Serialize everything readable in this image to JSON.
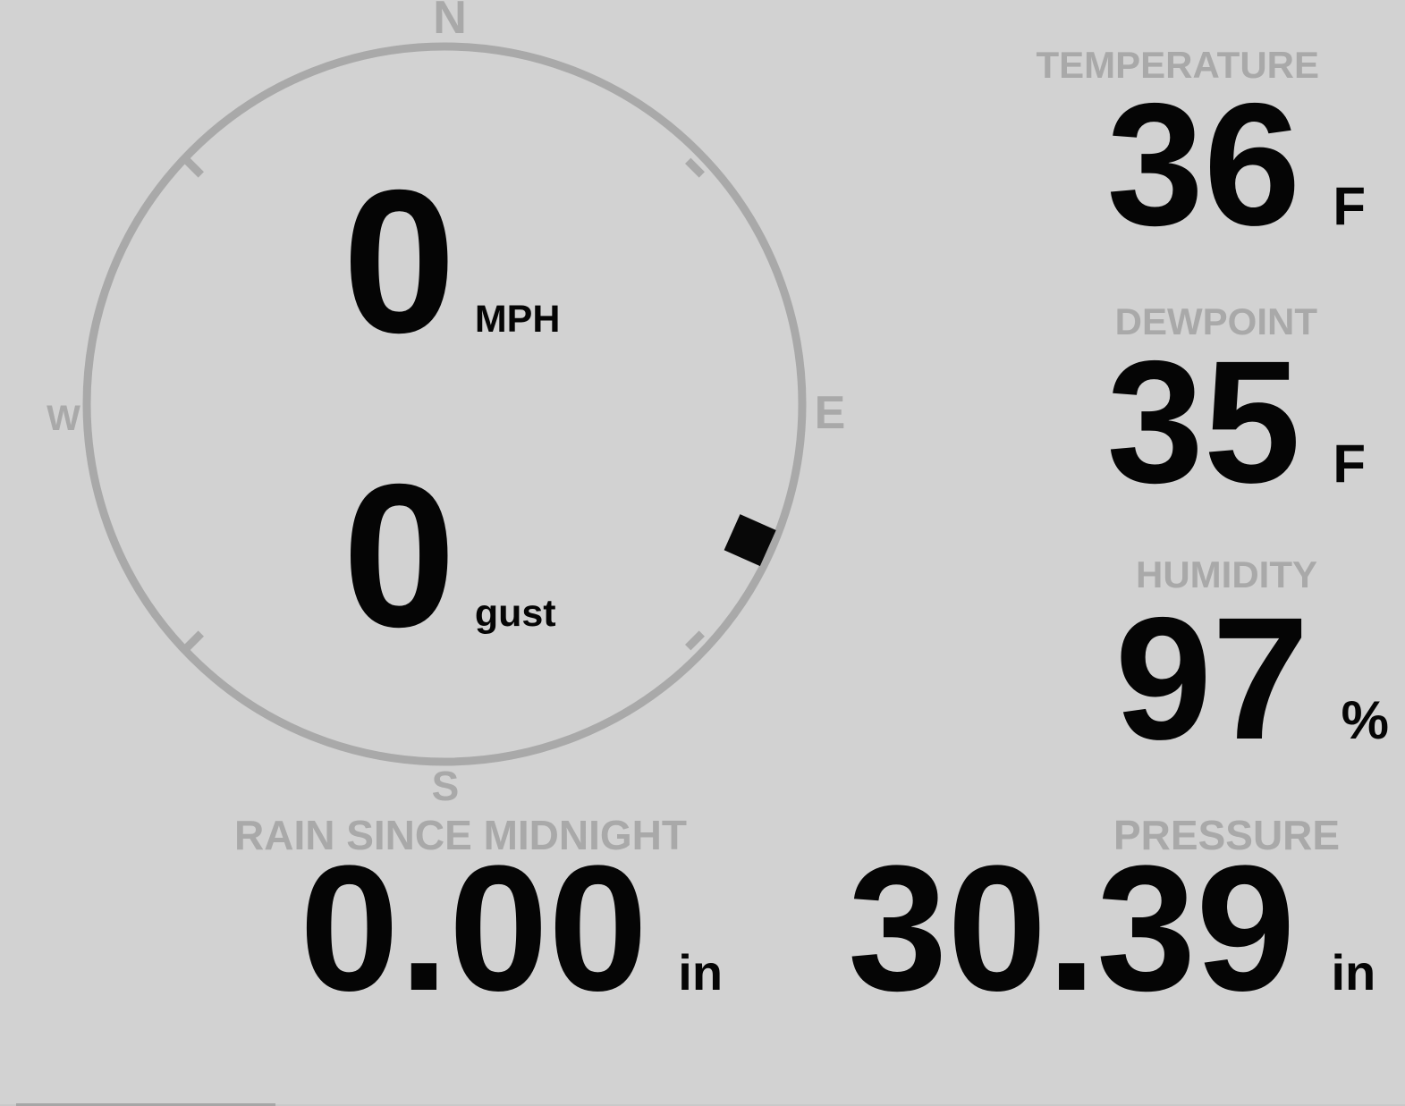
{
  "theme": {
    "background_color": "#d2d2d2",
    "muted_color": "#a9a9a9",
    "value_color": "#050505"
  },
  "wind": {
    "speed_value": "0",
    "speed_unit": "MPH",
    "gust_value": "0",
    "gust_unit": "gust",
    "compass": {
      "north": "N",
      "south": "S",
      "east": "E",
      "west": "W",
      "direction_degrees": 114
    }
  },
  "metrics": {
    "temperature": {
      "label": "TEMPERATURE",
      "value": "36",
      "unit": "F"
    },
    "dewpoint": {
      "label": "DEWPOINT",
      "value": "35",
      "unit": "F"
    },
    "humidity": {
      "label": "HUMIDITY",
      "value": "97",
      "unit": "%"
    },
    "rain": {
      "label": "RAIN SINCE MIDNIGHT",
      "value": "0.00",
      "unit": "in"
    },
    "pressure": {
      "label": "PRESSURE",
      "value": "30.39",
      "unit": "in"
    }
  }
}
